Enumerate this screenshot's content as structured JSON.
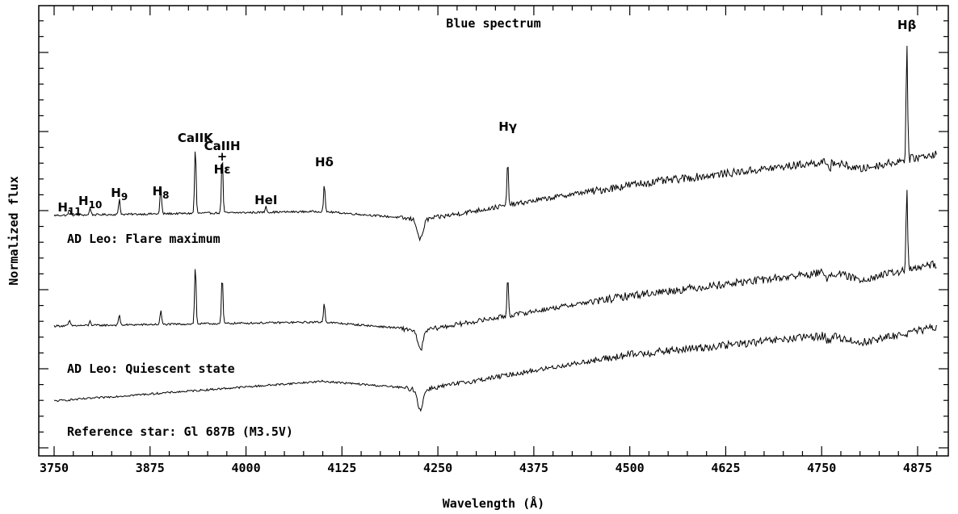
{
  "chart_data": {
    "type": "line",
    "title": "Blue spectrum",
    "xlabel": "Wavelength (Å)",
    "ylabel": "Normalized flux",
    "xlim": [
      3730,
      4915
    ],
    "xticks": [
      3750,
      3875,
      4000,
      4125,
      4250,
      4375,
      4500,
      4625,
      4750,
      4875
    ],
    "grid": false,
    "legend": "none",
    "series": [
      {
        "name": "AD Leo: Flare maximum",
        "baseline": [
          [
            3750,
            3.55
          ],
          [
            4100,
            3.6
          ],
          [
            4230,
            3.5
          ],
          [
            4500,
            3.95
          ],
          [
            4760,
            4.25
          ],
          [
            4800,
            4.15
          ],
          [
            4900,
            4.35
          ]
        ],
        "emission_peaks": [
          [
            3770,
            0.08
          ],
          [
            3797,
            0.09
          ],
          [
            3835,
            0.2
          ],
          [
            3889,
            0.35
          ],
          [
            3934,
            0.85
          ],
          [
            3969,
            0.75
          ],
          [
            4026,
            0.08
          ],
          [
            4102,
            0.35
          ],
          [
            4341,
            0.55
          ],
          [
            4861,
            1.45
          ]
        ],
        "absorption_dips": [
          [
            4227,
            -0.25
          ]
        ]
      },
      {
        "name": "AD Leo: Quiescent state",
        "baseline": [
          [
            3750,
            2.15
          ],
          [
            4100,
            2.2
          ],
          [
            4230,
            2.1
          ],
          [
            4500,
            2.55
          ],
          [
            4760,
            2.85
          ],
          [
            4800,
            2.75
          ],
          [
            4900,
            2.95
          ]
        ],
        "emission_peaks": [
          [
            3770,
            0.07
          ],
          [
            3797,
            0.06
          ],
          [
            3835,
            0.13
          ],
          [
            3889,
            0.18
          ],
          [
            3934,
            0.75
          ],
          [
            3969,
            0.6
          ],
          [
            4102,
            0.25
          ],
          [
            4341,
            0.5
          ],
          [
            4861,
            1.0
          ]
        ],
        "absorption_dips": [
          [
            4227,
            -0.25
          ]
        ]
      },
      {
        "name": "Reference star: Gl 687B (M3.5V)",
        "baseline": [
          [
            3750,
            1.2
          ],
          [
            4100,
            1.45
          ],
          [
            4230,
            1.35
          ],
          [
            4500,
            1.8
          ],
          [
            4760,
            2.05
          ],
          [
            4800,
            1.95
          ],
          [
            4900,
            2.15
          ]
        ],
        "emission_peaks": [],
        "absorption_dips": [
          [
            4227,
            -0.25
          ]
        ]
      }
    ],
    "annotations": [
      {
        "text": "H",
        "sub": "11",
        "x": 3770
      },
      {
        "text": "H",
        "sub": "10",
        "x": 3797
      },
      {
        "text": "H",
        "sub": "9",
        "x": 3835
      },
      {
        "text": "H",
        "sub": "8",
        "x": 3889
      },
      {
        "text": "CaIIK",
        "x": 3934
      },
      {
        "text": "CaIIH",
        "x": 3969
      },
      {
        "text": "+",
        "x": 3969
      },
      {
        "text": "Hε",
        "x": 3969
      },
      {
        "text": "HeI",
        "x": 4026
      },
      {
        "text": "Hδ",
        "x": 4102
      },
      {
        "text": "Hγ",
        "x": 4341
      },
      {
        "text": "Hβ",
        "x": 4861
      }
    ]
  }
}
